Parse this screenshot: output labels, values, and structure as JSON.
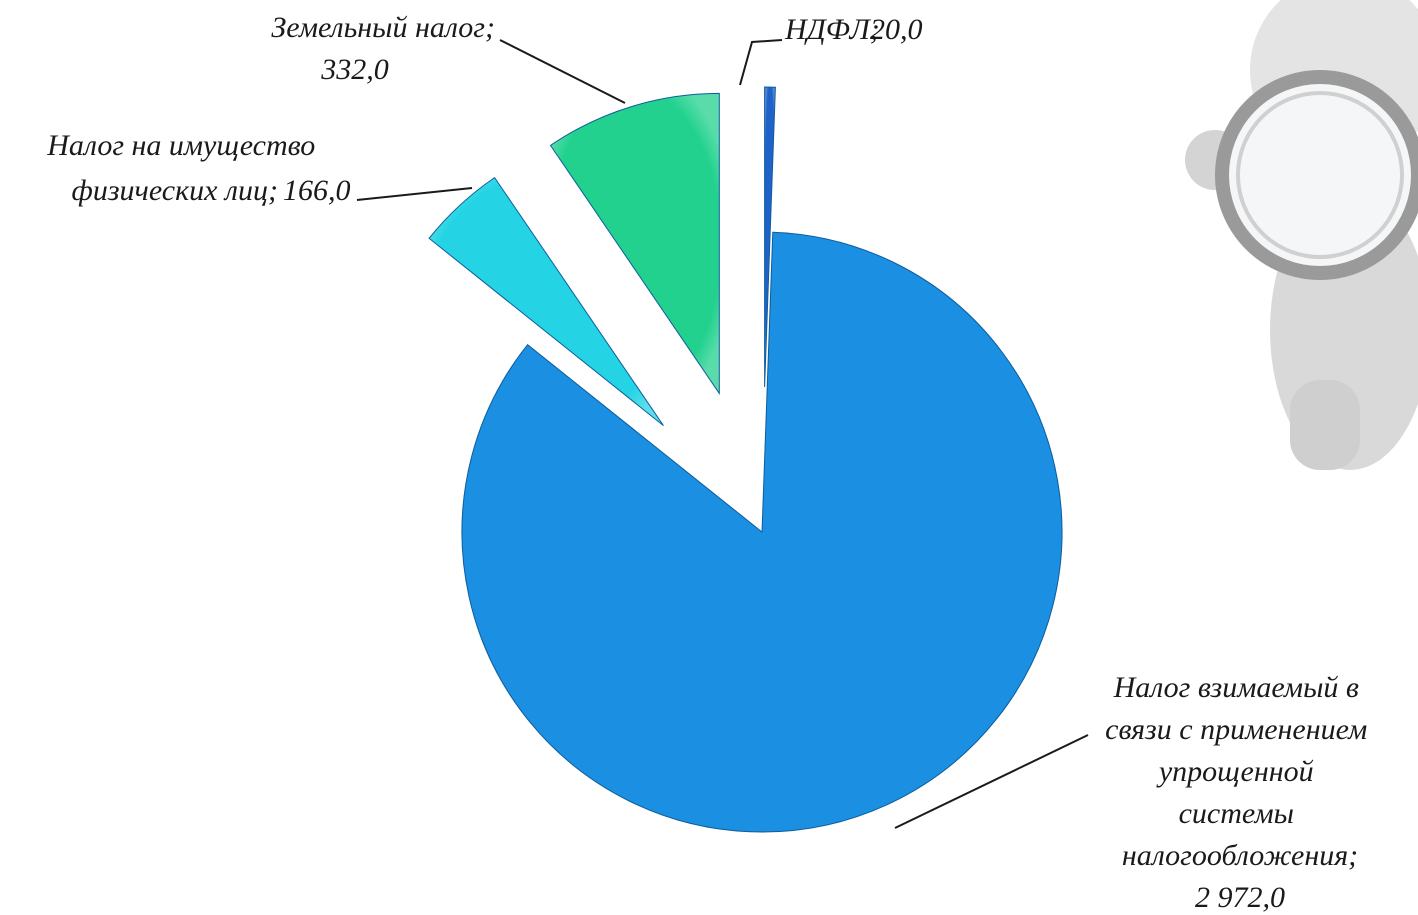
{
  "chart_data": {
    "type": "pie",
    "categories": [
      "НДФЛ;",
      "Налог взимаемый в связи с применением упрощенной системы налогообложения;",
      "Налог на имущество физических лиц;",
      "Земельный налог;"
    ],
    "values": [
      20,
      2972,
      166,
      332
    ],
    "value_labels": [
      "20,0",
      "2 972,0",
      "166,0",
      "332,0"
    ],
    "colors": [
      "#1f63c8",
      "#1b8fe2",
      "#24d4e4",
      "#22d18e"
    ]
  }
}
